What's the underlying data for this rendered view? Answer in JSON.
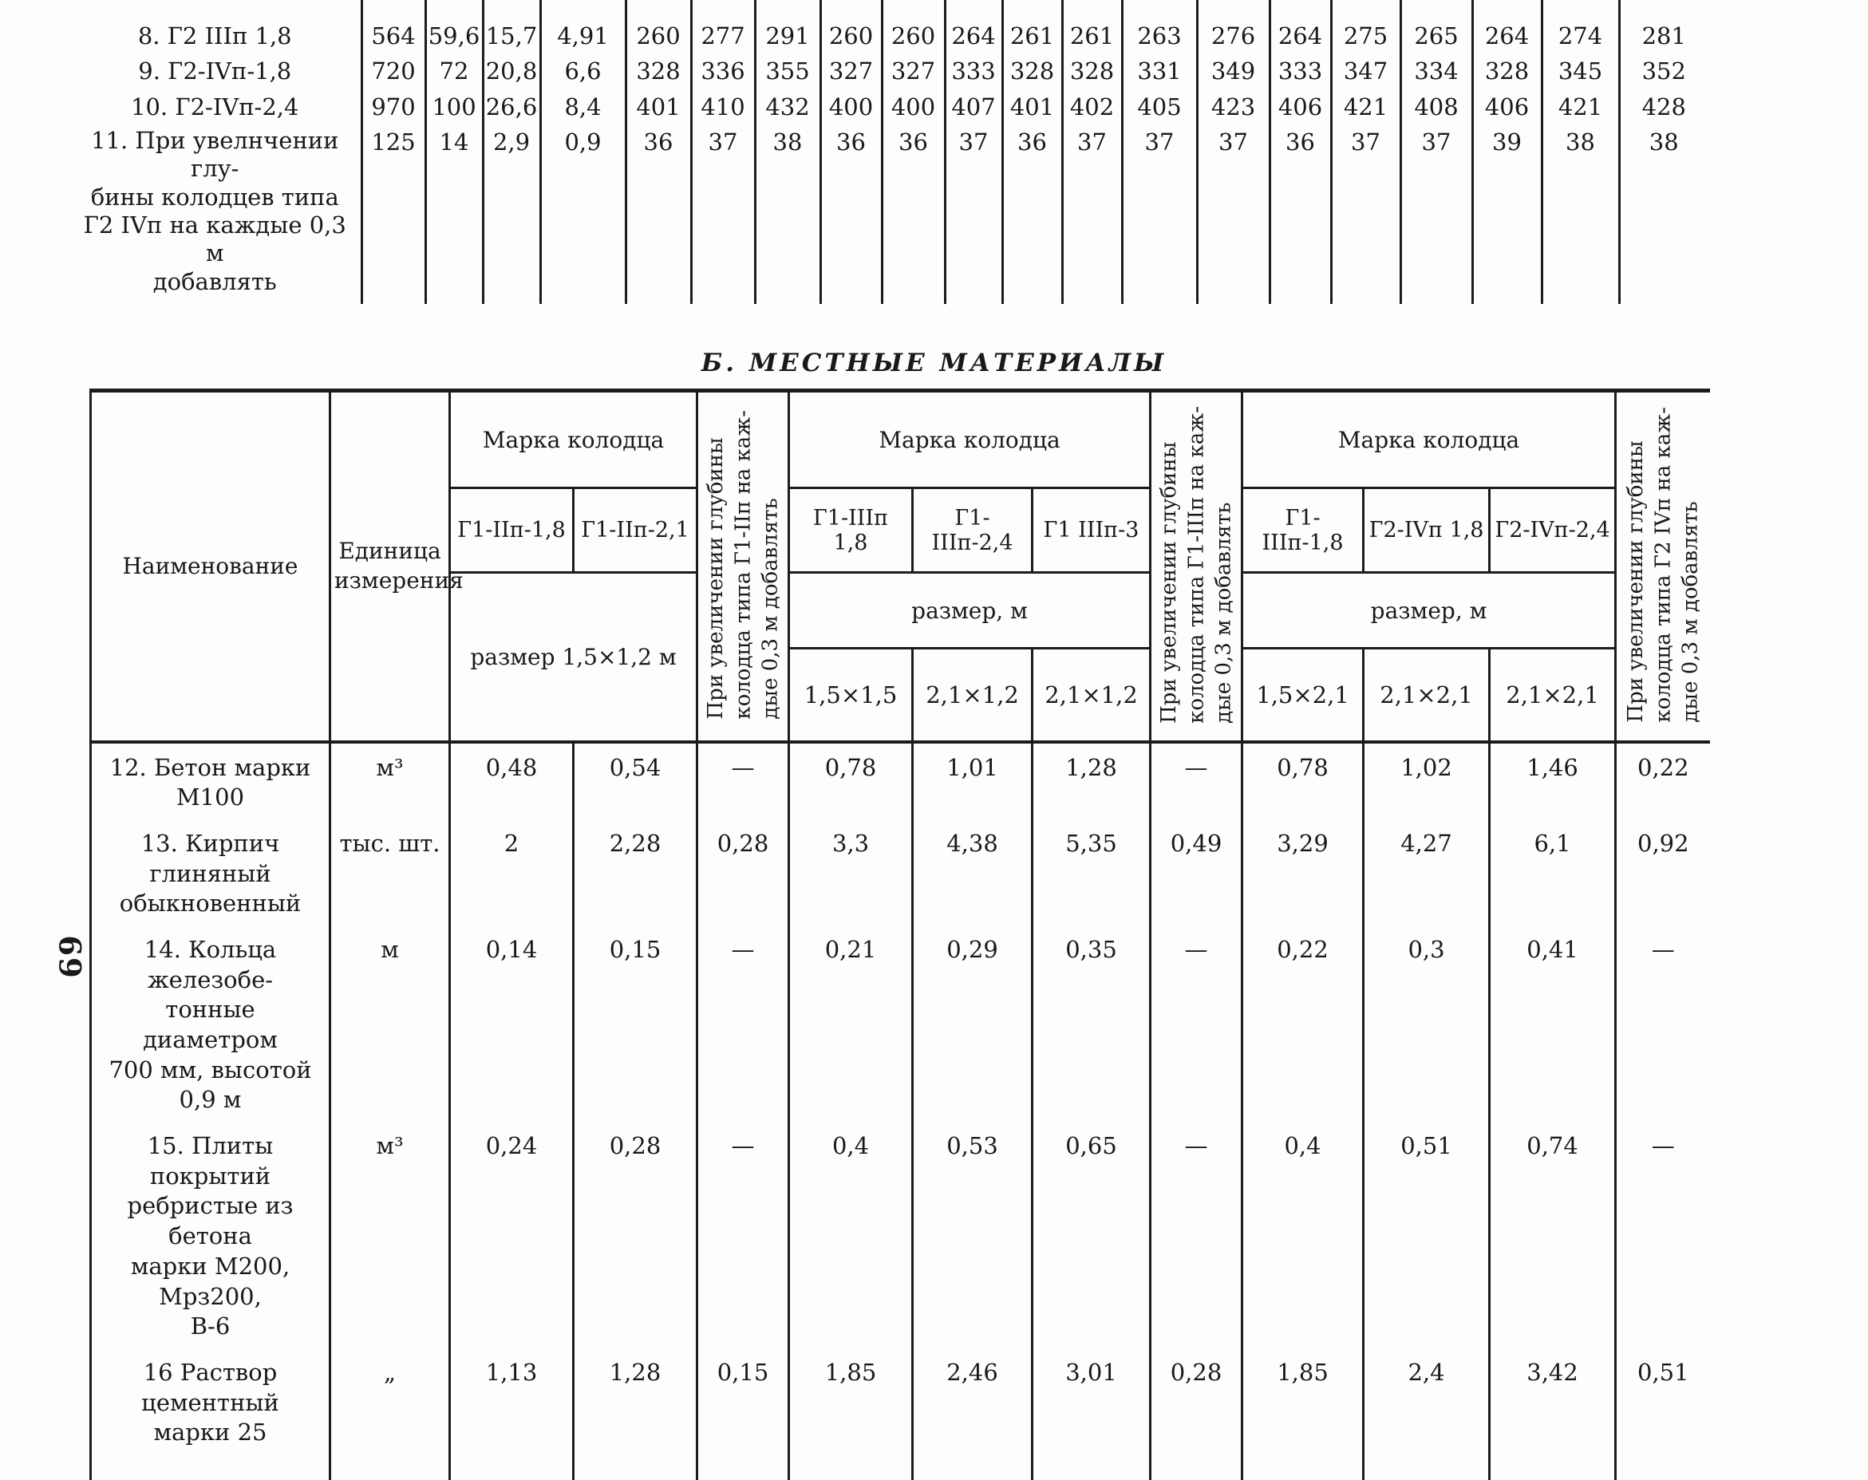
{
  "page_number": "69",
  "section_heading": "Б. МЕСТНЫЕ МАТЕРИАЛЫ",
  "colors": {
    "paper": "#fdfdfc",
    "ink": "#1c1c1c"
  },
  "upper_table": {
    "rows": [
      {
        "label": "8. Г2 IIIп 1,8",
        "values": [
          "564",
          "59,6",
          "15,7",
          "4,91",
          "260",
          "277",
          "291",
          "260",
          "260",
          "264",
          "261",
          "261",
          "263",
          "276",
          "264",
          "275",
          "265",
          "264",
          "274",
          "281"
        ]
      },
      {
        "label": "9. Г2-IVп-1,8",
        "values": [
          "720",
          "72",
          "20,8",
          "6,6",
          "328",
          "336",
          "355",
          "327",
          "327",
          "333",
          "328",
          "328",
          "331",
          "349",
          "333",
          "347",
          "334",
          "328",
          "345",
          "352"
        ]
      },
      {
        "label": "10. Г2-IVп-2,4",
        "values": [
          "970",
          "100",
          "26,6",
          "8,4",
          "401",
          "410",
          "432",
          "400",
          "400",
          "407",
          "401",
          "402",
          "405",
          "423",
          "406",
          "421",
          "408",
          "406",
          "421",
          "428"
        ]
      },
      {
        "label": "11. При увелнчении глу-\nбины колодцев типа\nГ2 IVп на каждые 0,3 м\nдобавлять",
        "values": [
          "125",
          "14",
          "2,9",
          "0,9",
          "36",
          "37",
          "38",
          "36",
          "36",
          "37",
          "36",
          "37",
          "37",
          "37",
          "36",
          "37",
          "37",
          "39",
          "38",
          "38"
        ]
      }
    ]
  },
  "materials_table": {
    "name_header": "Наименование",
    "unit_header": "Единица\nизмерения",
    "groups": [
      {
        "title": "Марка колодца",
        "brands": [
          "Г1-IIп-1,8",
          "Г1-IIп-2,1"
        ],
        "size_label": "размер 1,5×1,2 м",
        "sizes": []
      },
      {
        "title": "Марка колодца",
        "brands": [
          "Г1-IIIп 1,8",
          "Г1-IIIп-2,4",
          "Г1 IIIп-3"
        ],
        "size_label": "размер, м",
        "sizes": [
          "1,5×1,5",
          "2,1×1,2",
          "2,1×1,2"
        ]
      },
      {
        "title": "Марка колодца",
        "brands": [
          "Г1-IIIп-1,8",
          "Г2-IVп 1,8",
          "Г2-IVп-2,4"
        ],
        "size_label": "размер, м",
        "sizes": [
          "1,5×2,1",
          "2,1×2,1",
          "2,1×2,1"
        ]
      }
    ],
    "vertical_headers": [
      "При увеличении глубины\nколодца типа Г1-IIп на каж-\nдые 0,3 м добавлять",
      "При увеличении глубины\nколодца типа Г1-IIIп на каж-\nдые 0,3 м добавлять",
      "При увеличении глубины\nколодца типа Г2 IVп на каж-\nдые 0,3 м добавлять"
    ],
    "rows": [
      {
        "name": "12. Бетон марки М100",
        "unit": "м³",
        "values": [
          "0,48",
          "0,54",
          "—",
          "0,78",
          "1,01",
          "1,28",
          "—",
          "0,78",
          "1,02",
          "1,46",
          "0,22"
        ]
      },
      {
        "name": "13. Кирпич глиняный\nобыкновенный",
        "unit": "тыс. шт.",
        "values": [
          "2",
          "2,28",
          "0,28",
          "3,3",
          "4,38",
          "5,35",
          "0,49",
          "3,29",
          "4,27",
          "6,1",
          "0,92"
        ]
      },
      {
        "name": "14. Кольца железобе-\nтонные диаметром\n700 мм, высотой 0,9 м",
        "unit": "м",
        "values": [
          "0,14",
          "0,15",
          "—",
          "0,21",
          "0,29",
          "0,35",
          "—",
          "0,22",
          "0,3",
          "0,41",
          "—"
        ]
      },
      {
        "name": "15. Плиты покрытий\nребристые из бетона\nмарки М200, Мрз200,\nВ-6",
        "unit": "м³",
        "values": [
          "0,24",
          "0,28",
          "—",
          "0,4",
          "0,53",
          "0,65",
          "—",
          "0,4",
          "0,51",
          "0,74",
          "—"
        ]
      },
      {
        "name": "16 Раствор цементный\nмарки 25",
        "unit": "„",
        "values": [
          "1,13",
          "1,28",
          "0,15",
          "1,85",
          "2,46",
          "3,01",
          "0,28",
          "1,85",
          "2,4",
          "3,42",
          "0,51"
        ]
      }
    ]
  }
}
